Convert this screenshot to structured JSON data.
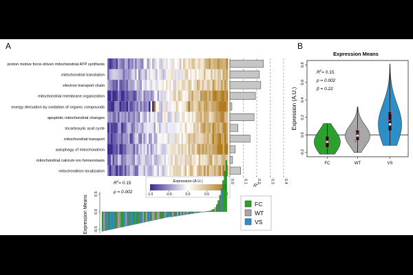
{
  "panel_a": {
    "label": "A",
    "rows": [
      "proton motive force-driven mitochondrial ATP synthesis",
      "mitochondrial translation",
      "electron transport chain",
      "mitochondrial membrane organization",
      "energy derivation by oxidation of organic compounds",
      "apoptotic mitochondrial changes",
      "tricarboxylic acid cycle",
      "mitochondrial transport",
      "autophagy of mitochondrion",
      "mitochondrial calcium ion homeostasis",
      "mitochondrion localization"
    ],
    "colorbar": {
      "title": "Expression (A.U.)",
      "ticks": [
        "-1.0",
        "-0.5",
        "0.0",
        "0.5",
        "1.0"
      ],
      "low_color": "#3b2a8f",
      "high_color": "#b07a1e"
    },
    "stats": {
      "r2_label": "R",
      "r2_sup": "2",
      "r2_value": "= 0.15",
      "p_text": "p = 0.002"
    },
    "means_ylabel": "Expression Means",
    "means_yticks": [
      "0.5",
      "0.0",
      "-0.5"
    ],
    "legend": [
      {
        "label": "FC",
        "color": "#2ca02c"
      },
      {
        "label": "WT",
        "color": "#a8a8a8"
      },
      {
        "label": "VS",
        "color": "#2d8fc8"
      }
    ]
  },
  "chart_data": [
    {
      "type": "bar",
      "orientation": "horizontal",
      "title": "",
      "categories": [
        "proton motive force-driven mitochondrial ATP synthesis",
        "mitochondrial translation",
        "electron transport chain",
        "mitochondrial membrane organization",
        "energy derivation by oxidation of organic compounds",
        "apoptotic mitochondrial changes",
        "tricarboxylic acid cycle",
        "mitochondrial transport",
        "autophagy of mitochondrion",
        "mitochondrial calcium ion homeostasis",
        "mitochondrion localization"
      ],
      "values": [
        0.25,
        0.22,
        0.23,
        0.19,
        0.015,
        0.18,
        0.06,
        0.15,
        0.04,
        0.02,
        0.08
      ],
      "xlabel": "R2",
      "xlim": [
        0,
        0.4
      ],
      "xticks": [
        "0.0",
        "0.1",
        "0.2",
        "0.3",
        "0.4"
      ]
    },
    {
      "type": "violin",
      "title": "Expression Means",
      "categories": [
        "FC",
        "WT",
        "VS"
      ],
      "colors": [
        "#2ca02c",
        "#a8a8a8",
        "#2d8fc8"
      ],
      "series": [
        {
          "name": "FC",
          "min": -0.22,
          "q1": -0.14,
          "median": -0.08,
          "q3": -0.02,
          "max": 0.13
        },
        {
          "name": "WT",
          "min": -0.2,
          "q1": -0.06,
          "median": -0.01,
          "q3": 0.05,
          "max": 0.32
        },
        {
          "name": "VS",
          "min": -0.12,
          "q1": 0.05,
          "median": 0.12,
          "q3": 0.26,
          "max": 0.81
        }
      ],
      "ylabel": "Expression (A.U.)",
      "ylim": [
        -0.25,
        0.85
      ],
      "yticks": [
        "-0.2",
        "0.0",
        "0.2",
        "0.4",
        "0.6",
        "0.8"
      ],
      "annotations": {
        "r2_label": "R",
        "r2_sup": "2",
        "r2_value": "= 0.15",
        "p": "p = 0.002",
        "beta": "β = 0.22"
      }
    }
  ],
  "panel_b": {
    "label": "B"
  }
}
